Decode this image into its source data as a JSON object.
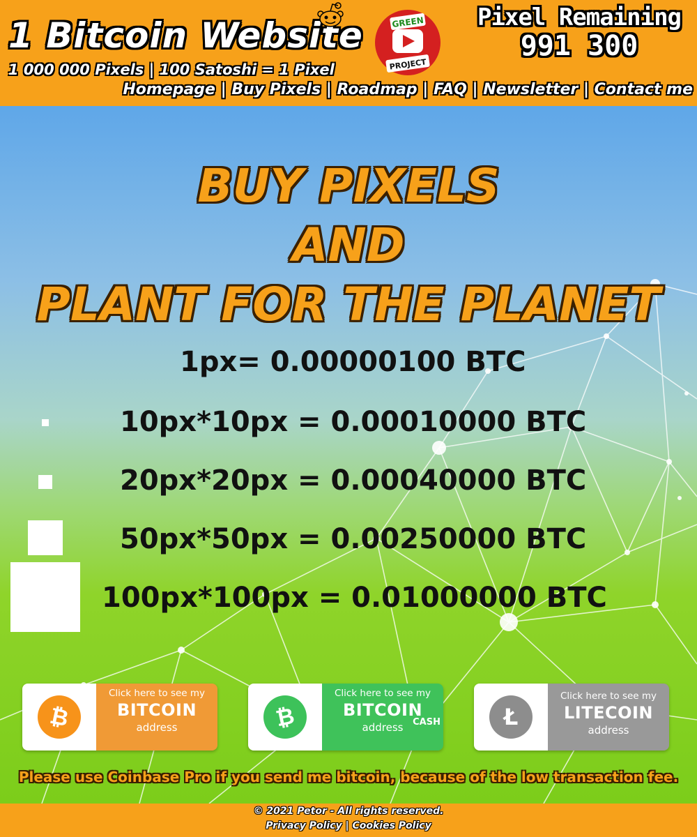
{
  "header": {
    "title": "1 Bitcoin Website",
    "subtitle": "1 000 000 Pixels | 100 Satoshi = 1 Pixel",
    "nav": [
      "Homepage",
      "Buy Pixels",
      "Roadmap",
      "FAQ",
      "Newsletter",
      "Contact me"
    ],
    "nav_separator": " | ",
    "green_logo": {
      "top_text": "GREEN",
      "bottom_text": "PROJECT",
      "icon": "play-icon",
      "color": "#d42020"
    },
    "pixel_remaining": {
      "label": "Pixel Remaining",
      "count": "991 300"
    },
    "reddit_icon": "reddit-icon"
  },
  "main": {
    "headline": [
      "BUY PIXELS",
      "AND",
      "PLANT FOR THE PLANET"
    ],
    "prices": [
      "1px= 0.00000100 BTC",
      "10px*10px = 0.00010000 BTC",
      "20px*20px = 0.00040000 BTC",
      "50px*50px = 0.00250000 BTC",
      "100px*100px = 0.01000000 BTC"
    ],
    "buttons": [
      {
        "small": "Click here to see my",
        "big": "BITCOIN",
        "addr": "address",
        "extra": "",
        "coin_symbol": "₿",
        "color": "#f09a36",
        "coin_color": "#f7931a"
      },
      {
        "small": "Click here to see my",
        "big": "BITCOIN",
        "addr": "address",
        "extra": "CASH",
        "coin_symbol": "₿",
        "color": "#3fc25a",
        "coin_color": "#3dc25a"
      },
      {
        "small": "Click here to see my",
        "big": "LITECOIN",
        "addr": "address",
        "extra": "",
        "coin_symbol": "Ł",
        "color": "#999999",
        "coin_color": "#8d8d8d"
      }
    ],
    "notice": "Please use Coinbase Pro if you send me bitcoin, because of the low transaction fee."
  },
  "footer": {
    "copyright": "© 2021 Petor - All rights reserved.",
    "privacy": "Privacy Policy",
    "separator": " | ",
    "cookies": "Cookies Policy"
  },
  "colors": {
    "brand_orange": "#f7a11a",
    "text_dark": "#111111"
  }
}
